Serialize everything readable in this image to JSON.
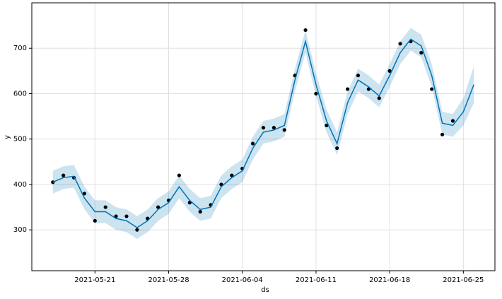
{
  "chart_data": {
    "type": "forecast",
    "xlabel": "ds",
    "ylabel": "y",
    "x": [
      "2021-05-17",
      "2021-05-18",
      "2021-05-19",
      "2021-05-20",
      "2021-05-21",
      "2021-05-22",
      "2021-05-23",
      "2021-05-24",
      "2021-05-25",
      "2021-05-26",
      "2021-05-27",
      "2021-05-28",
      "2021-05-29",
      "2021-05-30",
      "2021-05-31",
      "2021-06-01",
      "2021-06-02",
      "2021-06-03",
      "2021-06-04",
      "2021-06-05",
      "2021-06-06",
      "2021-06-07",
      "2021-06-08",
      "2021-06-09",
      "2021-06-10",
      "2021-06-11",
      "2021-06-12",
      "2021-06-13",
      "2021-06-14",
      "2021-06-15",
      "2021-06-16",
      "2021-06-17",
      "2021-06-18",
      "2021-06-19",
      "2021-06-20",
      "2021-06-21",
      "2021-06-22",
      "2021-06-23",
      "2021-06-24",
      "2021-06-25",
      "2021-06-26"
    ],
    "series": [
      {
        "color": "#000000",
        "values": [
          405,
          420,
          415,
          380,
          320,
          350,
          330,
          330,
          300,
          325,
          350,
          365,
          420,
          360,
          340,
          355,
          400,
          420,
          435,
          490,
          525,
          525,
          520,
          640,
          740,
          600,
          530,
          480,
          610,
          640,
          610,
          590,
          650,
          710,
          715,
          690,
          610,
          510,
          540,
          null,
          null
        ]
      },
      {
        "color": "#0072b2",
        "values": [
          405,
          415,
          418,
          370,
          340,
          340,
          325,
          320,
          305,
          320,
          345,
          360,
          395,
          365,
          345,
          350,
          395,
          415,
          430,
          480,
          515,
          520,
          530,
          630,
          715,
          620,
          540,
          490,
          580,
          630,
          615,
          595,
          640,
          690,
          720,
          705,
          640,
          535,
          530,
          560,
          620
        ]
      },
      {
        "color": "#0072b2",
        "values": [
          380,
          390,
          393,
          345,
          315,
          315,
          300,
          295,
          280,
          295,
          320,
          335,
          370,
          340,
          320,
          325,
          370,
          390,
          405,
          455,
          490,
          495,
          505,
          605,
          690,
          595,
          515,
          465,
          555,
          605,
          590,
          570,
          615,
          665,
          695,
          680,
          615,
          510,
          505,
          530,
          580
        ]
      },
      {
        "color": "#0072b2",
        "values": [
          430,
          440,
          443,
          395,
          365,
          365,
          350,
          345,
          330,
          345,
          370,
          385,
          420,
          390,
          370,
          375,
          420,
          440,
          455,
          505,
          540,
          545,
          555,
          655,
          740,
          645,
          565,
          515,
          605,
          655,
          640,
          620,
          665,
          715,
          745,
          730,
          665,
          560,
          555,
          590,
          660
        ]
      }
    ],
    "xlim": [
      "2021-05-15",
      "2021-06-28"
    ],
    "xticks": [
      "2021-05-21",
      "2021-05-28",
      "2021-06-04",
      "2021-06-11",
      "2021-06-18",
      "2021-06-25"
    ],
    "ylim": [
      210,
      800
    ],
    "yticks": [
      300,
      400,
      500,
      600,
      700
    ],
    "grid": true
  }
}
